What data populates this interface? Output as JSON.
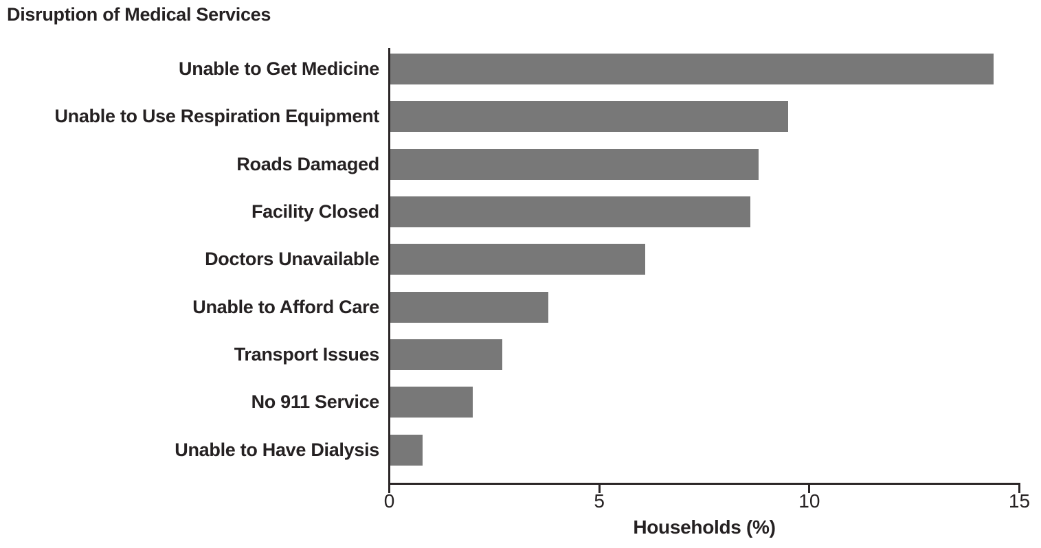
{
  "title": "Disruption of Medical Services",
  "chart_data": {
    "type": "bar",
    "orientation": "horizontal",
    "title": "Disruption of Medical Services",
    "categories": [
      "Unable to Get Medicine",
      "Unable to Use Respiration Equipment",
      "Roads Damaged",
      "Facility Closed",
      "Doctors Unavailable",
      "Unable to Afford Care",
      "Transport Issues",
      "No 911 Service",
      "Unable to Have Dialysis"
    ],
    "values": [
      14.4,
      9.5,
      8.8,
      8.6,
      6.1,
      3.8,
      2.7,
      2.0,
      0.8
    ],
    "xlabel": "Households (%)",
    "xlim": [
      0,
      15
    ],
    "xticks": [
      0,
      5,
      10,
      15
    ],
    "grid": false,
    "legend": false,
    "colors": {
      "bar": "#787878",
      "axis": "#2b2627",
      "text": "#252122",
      "background": "#ffffff"
    }
  }
}
